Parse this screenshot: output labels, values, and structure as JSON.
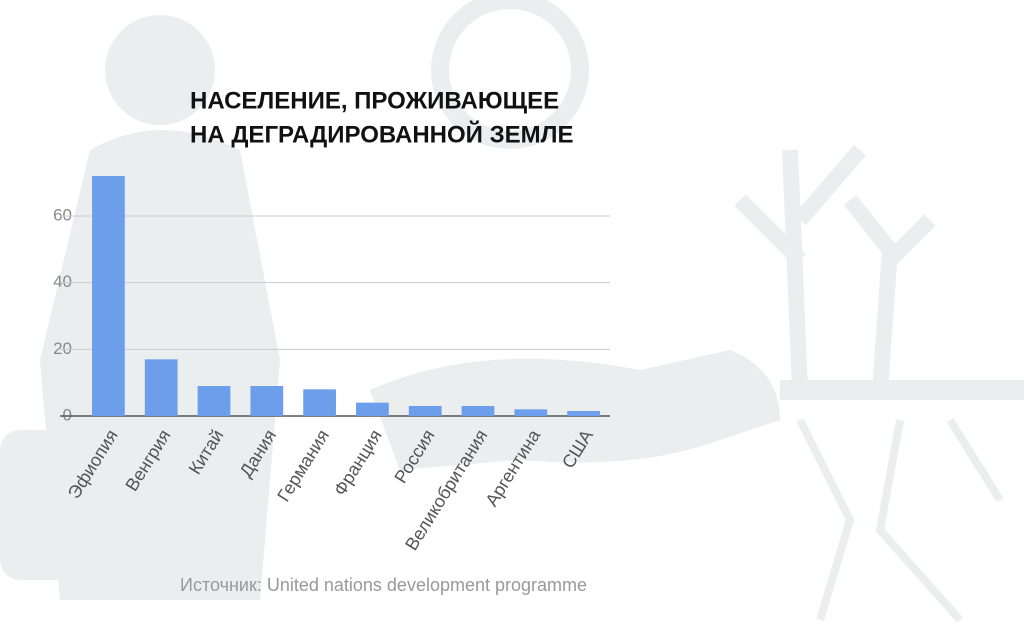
{
  "chart_data": {
    "type": "bar",
    "title": [
      "НАСЕЛЕНИЕ, ПРОЖИВАЮЩЕЕ",
      "НА ДЕГРАДИРОВАННОЙ ЗЕМЛЕ"
    ],
    "source": "Источник:  United nations development programme",
    "categories": [
      "Эфиопия",
      "Венгрия",
      "Китай",
      "Дания",
      "Германия",
      "Франция",
      "Россия",
      "Великобритания",
      "Аргентина",
      "США"
    ],
    "values": [
      72,
      17,
      9,
      9,
      8,
      4,
      3,
      3,
      2,
      1.5
    ],
    "color": "#6d9eeb",
    "ylim": [
      0,
      75
    ],
    "yticks": [
      0,
      20,
      40,
      60
    ],
    "grid": true
  }
}
